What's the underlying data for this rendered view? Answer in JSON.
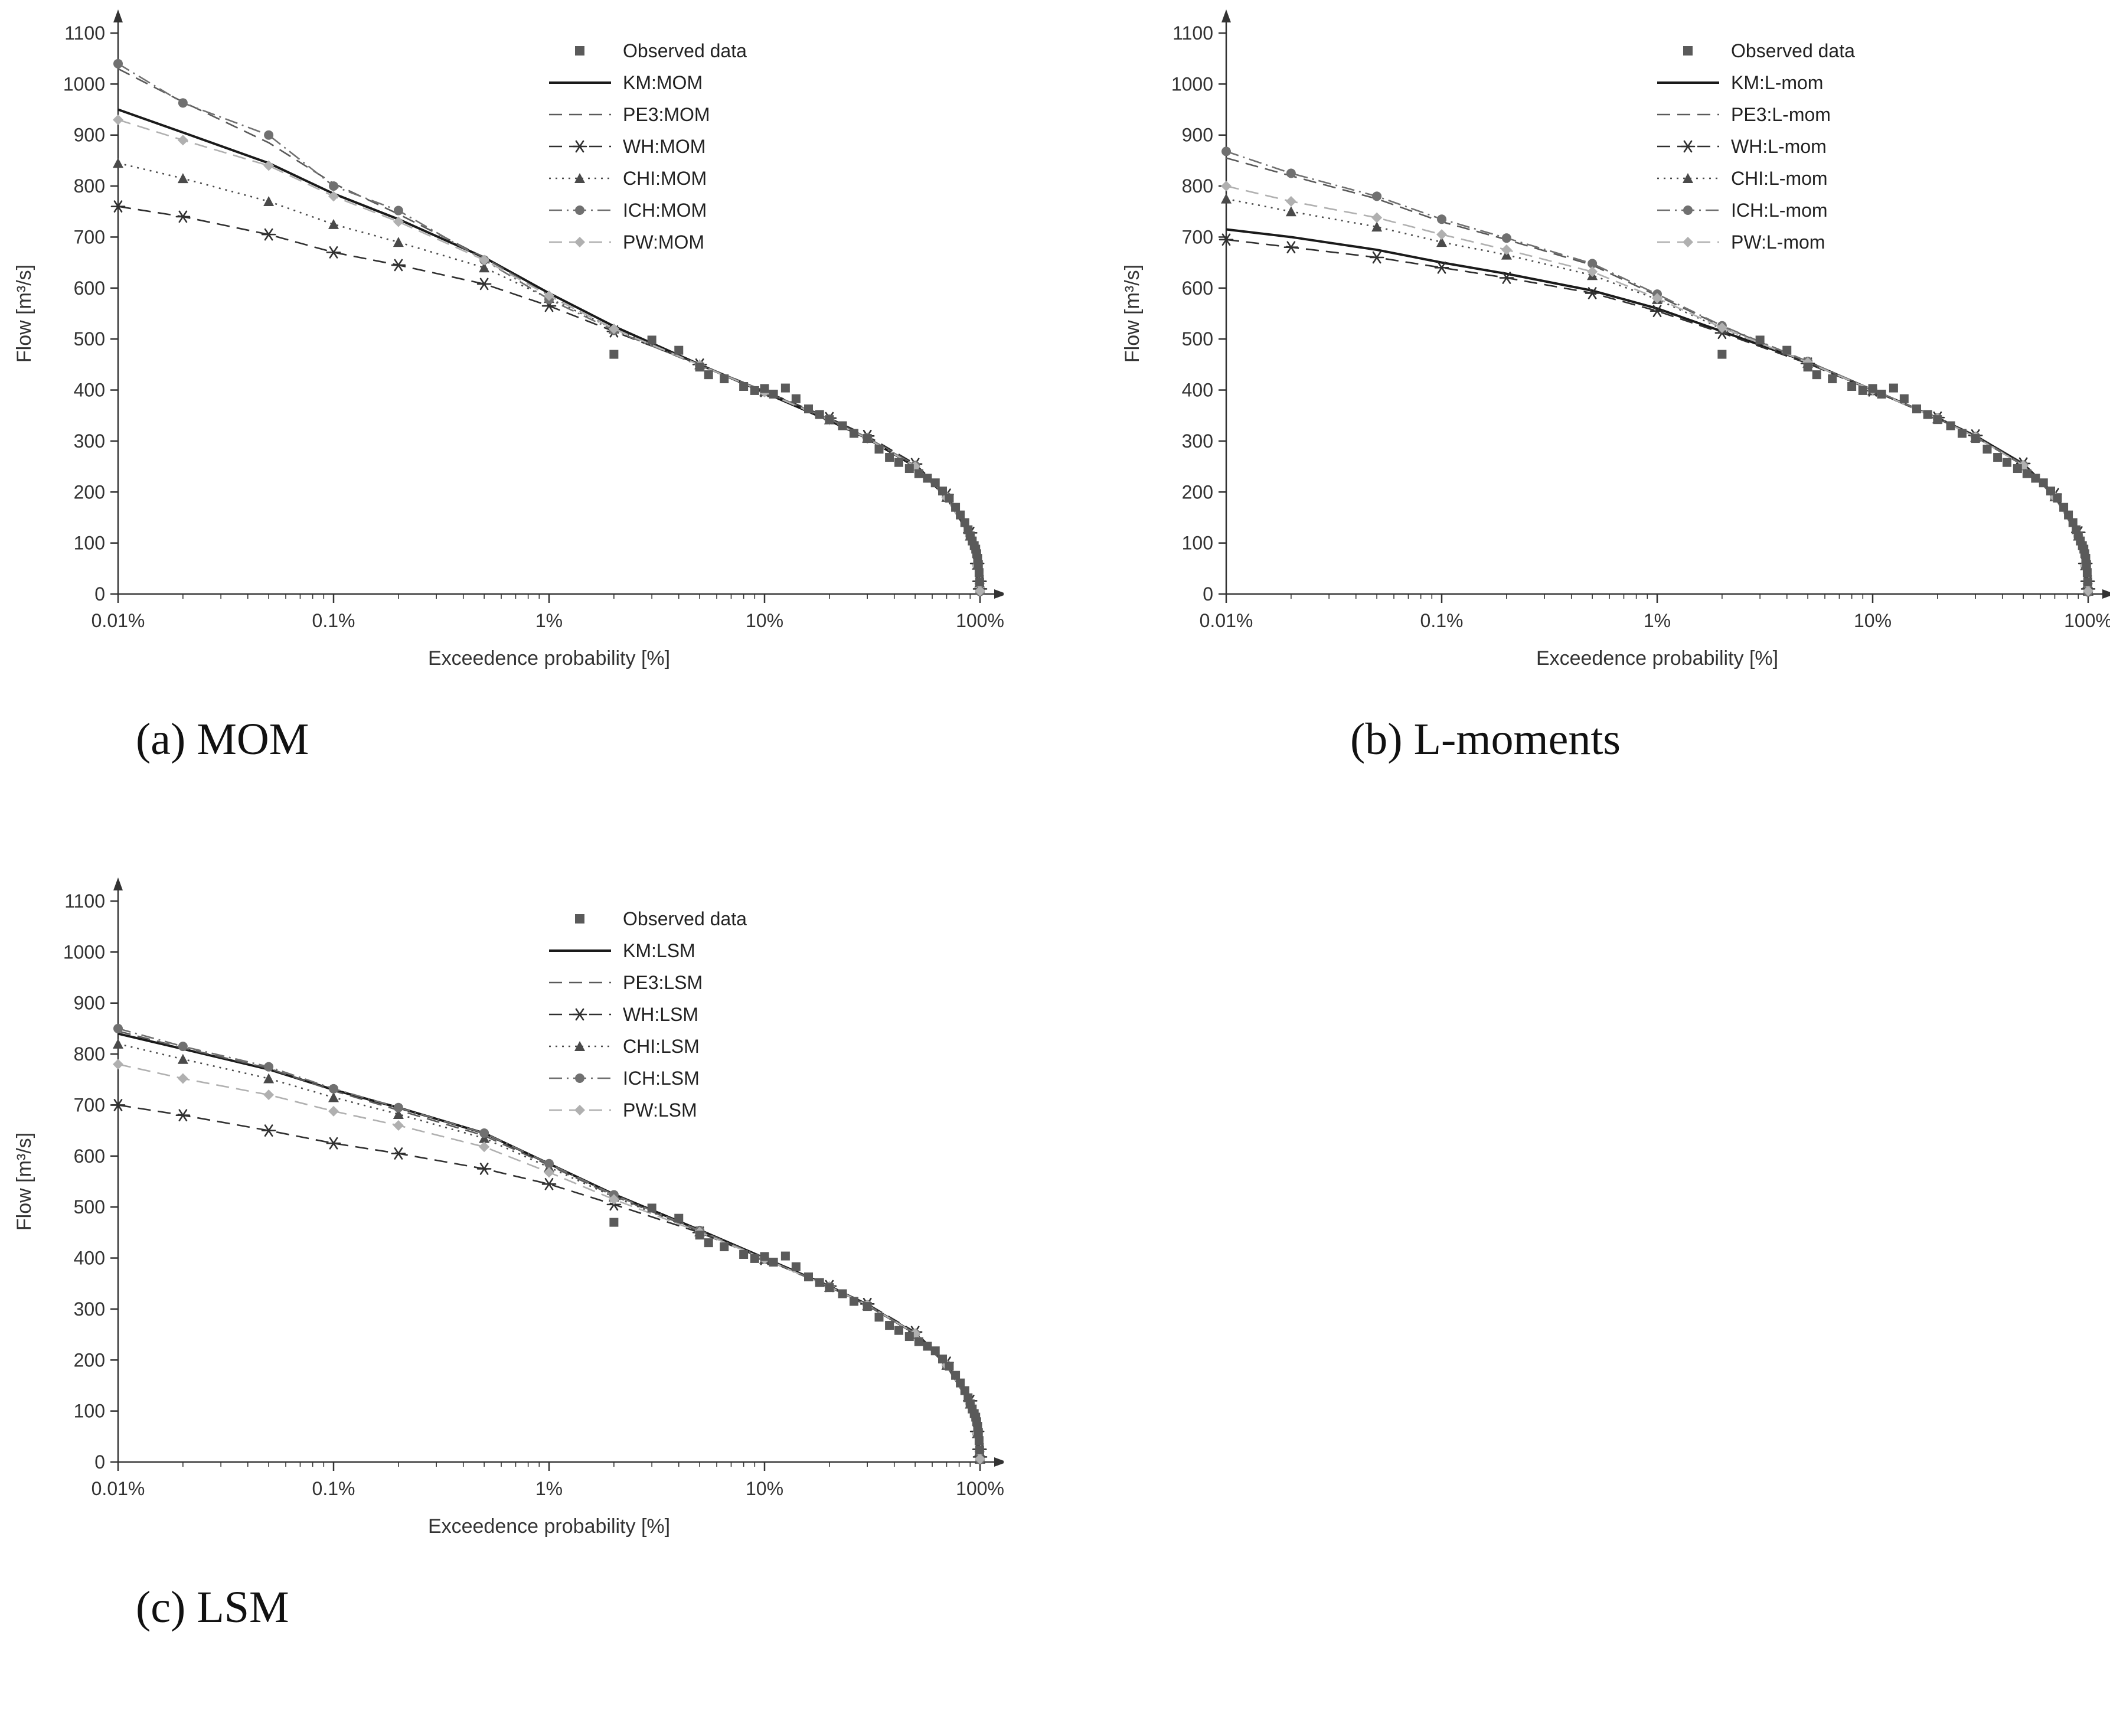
{
  "figure": {
    "captions": {
      "a": "(a) MOM",
      "b": "(b) L-moments",
      "c": "(c) LSM"
    }
  },
  "observed_points": [
    [
      2,
      470
    ],
    [
      3,
      498
    ],
    [
      4,
      478
    ],
    [
      5,
      445
    ],
    [
      5.5,
      430
    ],
    [
      6.5,
      422
    ],
    [
      8,
      407
    ],
    [
      9,
      399
    ],
    [
      10,
      403
    ],
    [
      11,
      392
    ],
    [
      12.5,
      404
    ],
    [
      14,
      383
    ],
    [
      16,
      363
    ],
    [
      18,
      352
    ],
    [
      20,
      342
    ],
    [
      23,
      330
    ],
    [
      26,
      315
    ],
    [
      30,
      305
    ],
    [
      34,
      284
    ],
    [
      38,
      268
    ],
    [
      42,
      258
    ],
    [
      47,
      246
    ],
    [
      52,
      236
    ],
    [
      57,
      227
    ],
    [
      62,
      218
    ],
    [
      67,
      202
    ],
    [
      72,
      188
    ],
    [
      77,
      170
    ],
    [
      81,
      155
    ],
    [
      85,
      140
    ],
    [
      88,
      126
    ],
    [
      90,
      114
    ],
    [
      92,
      104
    ],
    [
      94,
      95
    ],
    [
      95.5,
      88
    ],
    [
      96.5,
      79
    ],
    [
      97.5,
      70
    ],
    [
      98.3,
      58
    ],
    [
      99,
      42
    ],
    [
      99.6,
      24
    ]
  ],
  "chart_data": [
    {
      "id": "a",
      "type": "line",
      "title": "",
      "xlabel": "Exceedence probability [%]",
      "ylabel": "Flow [m³/s]",
      "x_scale": "log",
      "xlim": [
        0.01,
        100
      ],
      "ylim": [
        0,
        1100
      ],
      "x_ticks": [
        "0.01%",
        "0.1%",
        "1%",
        "10%",
        "100%"
      ],
      "x_tick_values": [
        0.01,
        0.1,
        1,
        10,
        100
      ],
      "y_ticks": [
        0,
        100,
        200,
        300,
        400,
        500,
        600,
        700,
        800,
        900,
        1000,
        1100
      ],
      "legend_position": "top-right",
      "observed_label": "Observed data",
      "observed_color": "#5a5a5a",
      "x_values": [
        0.01,
        0.02,
        0.05,
        0.1,
        0.2,
        0.5,
        1,
        2,
        5,
        10,
        20,
        30,
        50,
        70,
        90,
        97,
        99.5,
        100
      ],
      "series": [
        {
          "name": "KM:MOM",
          "line": "solid",
          "marker": "none",
          "color": "#1a1a1a",
          "y": [
            950,
            905,
            845,
            785,
            735,
            660,
            590,
            525,
            450,
            395,
            340,
            305,
            250,
            190,
            115,
            60,
            25,
            10
          ]
        },
        {
          "name": "PE3:MOM",
          "line": "dashed",
          "marker": "none",
          "color": "#5a5a5a",
          "y": [
            1030,
            965,
            885,
            805,
            745,
            660,
            585,
            520,
            450,
            398,
            342,
            306,
            250,
            188,
            112,
            55,
            20,
            5
          ]
        },
        {
          "name": "WH:MOM",
          "line": "dashed",
          "marker": "star",
          "color": "#303030",
          "y": [
            760,
            740,
            705,
            670,
            645,
            608,
            565,
            515,
            450,
            398,
            345,
            310,
            255,
            195,
            120,
            60,
            25,
            10
          ]
        },
        {
          "name": "CHI:MOM",
          "line": "dotted",
          "marker": "triangle",
          "color": "#4a4a4a",
          "y": [
            845,
            815,
            770,
            725,
            690,
            640,
            580,
            520,
            450,
            397,
            342,
            306,
            251,
            190,
            114,
            57,
            22,
            8
          ]
        },
        {
          "name": "ICH:MOM",
          "line": "dashdot",
          "marker": "circle",
          "color": "#707070",
          "y": [
            1040,
            963,
            900,
            800,
            752,
            655,
            578,
            517,
            448,
            397,
            343,
            307,
            252,
            191,
            115,
            56,
            20,
            5
          ]
        },
        {
          "name": "PW:MOM",
          "line": "dashed",
          "marker": "diamond",
          "color": "#b0b0b0",
          "y": [
            930,
            890,
            840,
            780,
            730,
            655,
            585,
            520,
            449,
            396,
            341,
            305,
            250,
            189,
            113,
            55,
            21,
            6
          ]
        }
      ]
    },
    {
      "id": "b",
      "type": "line",
      "title": "",
      "xlabel": "Exceedence probability [%]",
      "ylabel": "Flow [m³/s]",
      "x_scale": "log",
      "xlim": [
        0.01,
        100
      ],
      "ylim": [
        0,
        1100
      ],
      "x_ticks": [
        "0.01%",
        "0.1%",
        "1%",
        "10%",
        "100%"
      ],
      "x_tick_values": [
        0.01,
        0.1,
        1,
        10,
        100
      ],
      "y_ticks": [
        0,
        100,
        200,
        300,
        400,
        500,
        600,
        700,
        800,
        900,
        1000,
        1100
      ],
      "legend_position": "top-right",
      "observed_label": "Observed data",
      "observed_color": "#5a5a5a",
      "x_values": [
        0.01,
        0.02,
        0.05,
        0.1,
        0.2,
        0.5,
        1,
        2,
        5,
        10,
        20,
        30,
        50,
        70,
        90,
        97,
        99.5,
        100
      ],
      "series": [
        {
          "name": "KM:L-mom",
          "line": "solid",
          "marker": "none",
          "color": "#1a1a1a",
          "y": [
            715,
            700,
            675,
            650,
            628,
            595,
            560,
            515,
            455,
            400,
            345,
            310,
            255,
            195,
            120,
            60,
            25,
            10
          ]
        },
        {
          "name": "PE3:L-mom",
          "line": "dashed",
          "marker": "none",
          "color": "#5a5a5a",
          "y": [
            855,
            820,
            775,
            730,
            695,
            645,
            585,
            525,
            455,
            400,
            344,
            308,
            252,
            190,
            114,
            56,
            20,
            5
          ]
        },
        {
          "name": "WH:L-mom",
          "line": "dashed",
          "marker": "star",
          "color": "#303030",
          "y": [
            695,
            680,
            660,
            640,
            620,
            590,
            555,
            512,
            452,
            399,
            346,
            311,
            256,
            196,
            121,
            60,
            25,
            10
          ]
        },
        {
          "name": "CHI:L-mom",
          "line": "dotted",
          "marker": "triangle",
          "color": "#4a4a4a",
          "y": [
            775,
            750,
            720,
            690,
            665,
            625,
            578,
            520,
            453,
            399,
            344,
            308,
            252,
            191,
            114,
            56,
            21,
            6
          ]
        },
        {
          "name": "ICH:L-mom",
          "line": "dashdot",
          "marker": "circle",
          "color": "#707070",
          "y": [
            868,
            825,
            780,
            735,
            698,
            648,
            588,
            526,
            456,
            401,
            345,
            309,
            253,
            190,
            113,
            55,
            19,
            4
          ]
        },
        {
          "name": "PW:L-mom",
          "line": "dashed",
          "marker": "diamond",
          "color": "#b0b0b0",
          "y": [
            800,
            770,
            738,
            705,
            675,
            632,
            580,
            522,
            454,
            400,
            344,
            308,
            252,
            190,
            114,
            56,
            21,
            6
          ]
        }
      ]
    },
    {
      "id": "c",
      "type": "line",
      "title": "",
      "xlabel": "Exceedence probability [%]",
      "ylabel": "Flow [m³/s]",
      "x_scale": "log",
      "xlim": [
        0.01,
        100
      ],
      "ylim": [
        0,
        1100
      ],
      "x_ticks": [
        "0.01%",
        "0.1%",
        "1%",
        "10%",
        "100%"
      ],
      "x_tick_values": [
        0.01,
        0.1,
        1,
        10,
        100
      ],
      "y_ticks": [
        0,
        100,
        200,
        300,
        400,
        500,
        600,
        700,
        800,
        900,
        1000,
        1100
      ],
      "legend_position": "top-right",
      "observed_label": "Observed data",
      "observed_color": "#5a5a5a",
      "x_values": [
        0.01,
        0.02,
        0.05,
        0.1,
        0.2,
        0.5,
        1,
        2,
        5,
        10,
        20,
        30,
        50,
        70,
        90,
        97,
        99.5,
        100
      ],
      "series": [
        {
          "name": "KM:LSM",
          "line": "solid",
          "marker": "none",
          "color": "#1a1a1a",
          "y": [
            840,
            810,
            770,
            730,
            695,
            645,
            585,
            525,
            455,
            400,
            345,
            308,
            252,
            190,
            115,
            57,
            22,
            8
          ]
        },
        {
          "name": "PE3:LSM",
          "line": "dashed",
          "marker": "none",
          "color": "#5a5a5a",
          "y": [
            845,
            812,
            772,
            728,
            690,
            640,
            582,
            522,
            452,
            398,
            343,
            307,
            251,
            189,
            113,
            55,
            20,
            5
          ]
        },
        {
          "name": "WH:LSM",
          "line": "dashed",
          "marker": "star",
          "color": "#303030",
          "y": [
            700,
            680,
            650,
            625,
            605,
            575,
            545,
            505,
            450,
            398,
            345,
            310,
            255,
            195,
            120,
            60,
            25,
            10
          ]
        },
        {
          "name": "CHI:LSM",
          "line": "dotted",
          "marker": "triangle",
          "color": "#4a4a4a",
          "y": [
            820,
            790,
            752,
            715,
            682,
            635,
            578,
            520,
            452,
            398,
            343,
            307,
            251,
            190,
            114,
            56,
            21,
            6
          ]
        },
        {
          "name": "ICH:LSM",
          "line": "dashdot",
          "marker": "circle",
          "color": "#707070",
          "y": [
            850,
            815,
            775,
            732,
            695,
            645,
            585,
            524,
            454,
            399,
            344,
            308,
            252,
            190,
            114,
            55,
            20,
            5
          ]
        },
        {
          "name": "PW:LSM",
          "line": "dashed",
          "marker": "diamond",
          "color": "#b0b0b0",
          "y": [
            780,
            752,
            720,
            688,
            660,
            618,
            568,
            515,
            451,
            398,
            344,
            308,
            252,
            190,
            114,
            56,
            21,
            6
          ]
        }
      ]
    }
  ]
}
